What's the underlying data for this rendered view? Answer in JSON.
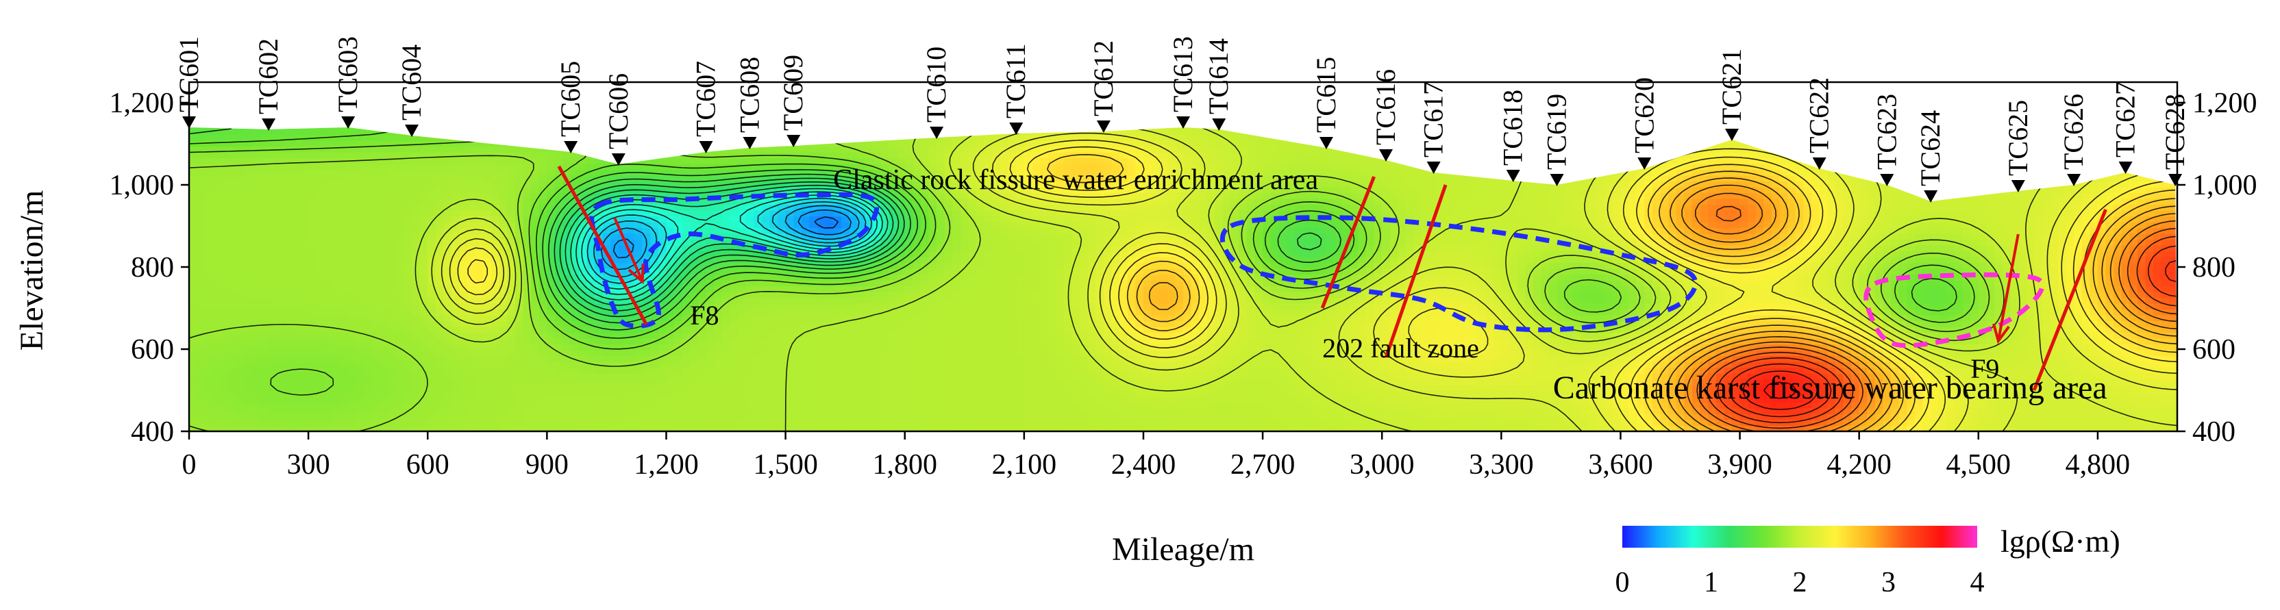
{
  "chart_data": {
    "type": "heatmap",
    "title": "",
    "xlabel": "Mileage/m",
    "ylabel": "Elevation/m",
    "xlim": [
      0,
      5000
    ],
    "ylim": [
      400,
      1250
    ],
    "x_ticks": [
      {
        "v": 0,
        "label": "0"
      },
      {
        "v": 300,
        "label": "300"
      },
      {
        "v": 600,
        "label": "600"
      },
      {
        "v": 900,
        "label": "900"
      },
      {
        "v": 1200,
        "label": "1,200"
      },
      {
        "v": 1500,
        "label": "1,500"
      },
      {
        "v": 1800,
        "label": "1,800"
      },
      {
        "v": 2100,
        "label": "2,100"
      },
      {
        "v": 2400,
        "label": "2,400"
      },
      {
        "v": 2700,
        "label": "2,700"
      },
      {
        "v": 3000,
        "label": "3,000"
      },
      {
        "v": 3300,
        "label": "3,300"
      },
      {
        "v": 3600,
        "label": "3,600"
      },
      {
        "v": 3900,
        "label": "3,900"
      },
      {
        "v": 4200,
        "label": "4,200"
      },
      {
        "v": 4500,
        "label": "4,500"
      },
      {
        "v": 4800,
        "label": "4,800"
      }
    ],
    "y_ticks": [
      {
        "v": 400,
        "label": "400"
      },
      {
        "v": 600,
        "label": "600"
      },
      {
        "v": 800,
        "label": "800"
      },
      {
        "v": 1000,
        "label": "1,000"
      },
      {
        "v": 1200,
        "label": "1,200"
      }
    ],
    "stations": [
      {
        "name": "TC601",
        "x": 0,
        "elev": 1140
      },
      {
        "name": "TC602",
        "x": 200,
        "elev": 1135
      },
      {
        "name": "TC603",
        "x": 400,
        "elev": 1140
      },
      {
        "name": "TC604",
        "x": 560,
        "elev": 1120
      },
      {
        "name": "TC605",
        "x": 960,
        "elev": 1080
      },
      {
        "name": "TC606",
        "x": 1080,
        "elev": 1050
      },
      {
        "name": "TC607",
        "x": 1300,
        "elev": 1080
      },
      {
        "name": "TC608",
        "x": 1410,
        "elev": 1090
      },
      {
        "name": "TC609",
        "x": 1520,
        "elev": 1095
      },
      {
        "name": "TC610",
        "x": 1880,
        "elev": 1115
      },
      {
        "name": "TC611",
        "x": 2080,
        "elev": 1125
      },
      {
        "name": "TC612",
        "x": 2300,
        "elev": 1130
      },
      {
        "name": "TC613",
        "x": 2500,
        "elev": 1140
      },
      {
        "name": "TC614",
        "x": 2590,
        "elev": 1135
      },
      {
        "name": "TC615",
        "x": 2860,
        "elev": 1090
      },
      {
        "name": "TC616",
        "x": 3010,
        "elev": 1060
      },
      {
        "name": "TC617",
        "x": 3130,
        "elev": 1030
      },
      {
        "name": "TC618",
        "x": 3330,
        "elev": 1010
      },
      {
        "name": "TC619",
        "x": 3440,
        "elev": 1000
      },
      {
        "name": "TC620",
        "x": 3660,
        "elev": 1040
      },
      {
        "name": "TC621",
        "x": 3880,
        "elev": 1110
      },
      {
        "name": "TC622",
        "x": 4100,
        "elev": 1040
      },
      {
        "name": "TC623",
        "x": 4270,
        "elev": 1000
      },
      {
        "name": "TC624",
        "x": 4380,
        "elev": 960
      },
      {
        "name": "TC625",
        "x": 4600,
        "elev": 985
      },
      {
        "name": "TC626",
        "x": 4740,
        "elev": 1000
      },
      {
        "name": "TC627",
        "x": 4870,
        "elev": 1030
      },
      {
        "name": "TC628",
        "x": 4995,
        "elev": 1000
      }
    ],
    "anomalies": [
      {
        "x": 730,
        "y": 790,
        "v": 2.55,
        "rx": 100,
        "ry": 110
      },
      {
        "x": 1080,
        "y": 830,
        "v": 0.55,
        "rx": 170,
        "ry": 160
      },
      {
        "x": 1450,
        "y": 920,
        "v": 0.9,
        "rx": 280,
        "ry": 110
      },
      {
        "x": 1650,
        "y": 900,
        "v": 1.0,
        "rx": 160,
        "ry": 100
      },
      {
        "x": 2250,
        "y": 1040,
        "v": 2.6,
        "rx": 250,
        "ry": 90
      },
      {
        "x": 2450,
        "y": 730,
        "v": 2.75,
        "rx": 150,
        "ry": 140
      },
      {
        "x": 2820,
        "y": 860,
        "v": 1.35,
        "rx": 170,
        "ry": 110
      },
      {
        "x": 3520,
        "y": 720,
        "v": 1.45,
        "rx": 220,
        "ry": 110
      },
      {
        "x": 3870,
        "y": 930,
        "v": 2.95,
        "rx": 240,
        "ry": 140
      },
      {
        "x": 4000,
        "y": 500,
        "v": 3.45,
        "rx": 320,
        "ry": 160
      },
      {
        "x": 4380,
        "y": 720,
        "v": 1.4,
        "rx": 180,
        "ry": 130
      },
      {
        "x": 5000,
        "y": 790,
        "v": 3.2,
        "rx": 230,
        "ry": 190
      },
      {
        "x": 3200,
        "y": 650,
        "v": 2.35,
        "rx": 300,
        "ry": 150
      },
      {
        "x": 300,
        "y": 520,
        "v": 1.8,
        "rx": 300,
        "ry": 120
      }
    ],
    "background_value": 1.95,
    "faults": [
      {
        "name": "F8",
        "points": [
          [
            930,
            1045
          ],
          [
            1150,
            660
          ]
        ],
        "arrow": [
          [
            1070,
            920
          ],
          [
            1140,
            765
          ]
        ]
      },
      {
        "name": "",
        "points": [
          [
            2980,
            1020
          ],
          [
            2850,
            700
          ]
        ],
        "arrow": null
      },
      {
        "name": "",
        "points": [
          [
            3160,
            1000
          ],
          [
            3010,
            580
          ]
        ],
        "arrow": null
      },
      {
        "name": "F9",
        "points": [
          [
            4820,
            940
          ],
          [
            4640,
            500
          ]
        ],
        "arrow": [
          [
            4600,
            880
          ],
          [
            4550,
            620
          ]
        ]
      }
    ],
    "zones_blue": [
      [
        [
          1030,
          950
        ],
        [
          1250,
          965
        ],
        [
          1550,
          975
        ],
        [
          1720,
          965
        ],
        [
          1690,
          880
        ],
        [
          1550,
          830
        ],
        [
          1420,
          850
        ],
        [
          1250,
          880
        ],
        [
          1150,
          820
        ],
        [
          1180,
          680
        ],
        [
          1100,
          660
        ],
        [
          1060,
          720
        ],
        [
          1030,
          840
        ]
      ],
      [
        [
          2620,
          900
        ],
        [
          2900,
          920
        ],
        [
          3250,
          890
        ],
        [
          3600,
          830
        ],
        [
          3780,
          780
        ],
        [
          3730,
          700
        ],
        [
          3480,
          650
        ],
        [
          3250,
          660
        ],
        [
          3100,
          720
        ],
        [
          2900,
          750
        ],
        [
          2650,
          800
        ]
      ]
    ],
    "zones_magenta": [
      [
        [
          4240,
          760
        ],
        [
          4450,
          780
        ],
        [
          4650,
          770
        ],
        [
          4620,
          700
        ],
        [
          4500,
          640
        ],
        [
          4300,
          610
        ],
        [
          4230,
          680
        ]
      ]
    ],
    "annotations": [
      {
        "text": "Clastic rock fissure water enrichment area",
        "x": 1620,
        "y": 990,
        "size": 42
      },
      {
        "text": "F8",
        "x": 1260,
        "y": 660,
        "size": 40
      },
      {
        "text": "202 fault zone",
        "x": 2850,
        "y": 580,
        "size": 40
      },
      {
        "text": "F9",
        "x": 4480,
        "y": 530,
        "size": 40
      },
      {
        "text": "Carbonate karst fissure water bearing area",
        "x": 3430,
        "y": 480,
        "size": 48
      }
    ],
    "colorbar": {
      "label": "lgρ(Ω·m)",
      "min": 0,
      "max": 4,
      "ticks": [
        {
          "v": 0,
          "label": "0"
        },
        {
          "v": 1,
          "label": "1"
        },
        {
          "v": 2,
          "label": "2"
        },
        {
          "v": 3,
          "label": "3"
        },
        {
          "v": 4,
          "label": "4"
        }
      ],
      "stops": [
        "#1a1aff",
        "#10a8ff",
        "#22ffd8",
        "#2fe06a",
        "#6fe632",
        "#c8f032",
        "#fff23a",
        "#ffb020",
        "#ff5018",
        "#ff1010",
        "#ff30d8"
      ]
    }
  }
}
